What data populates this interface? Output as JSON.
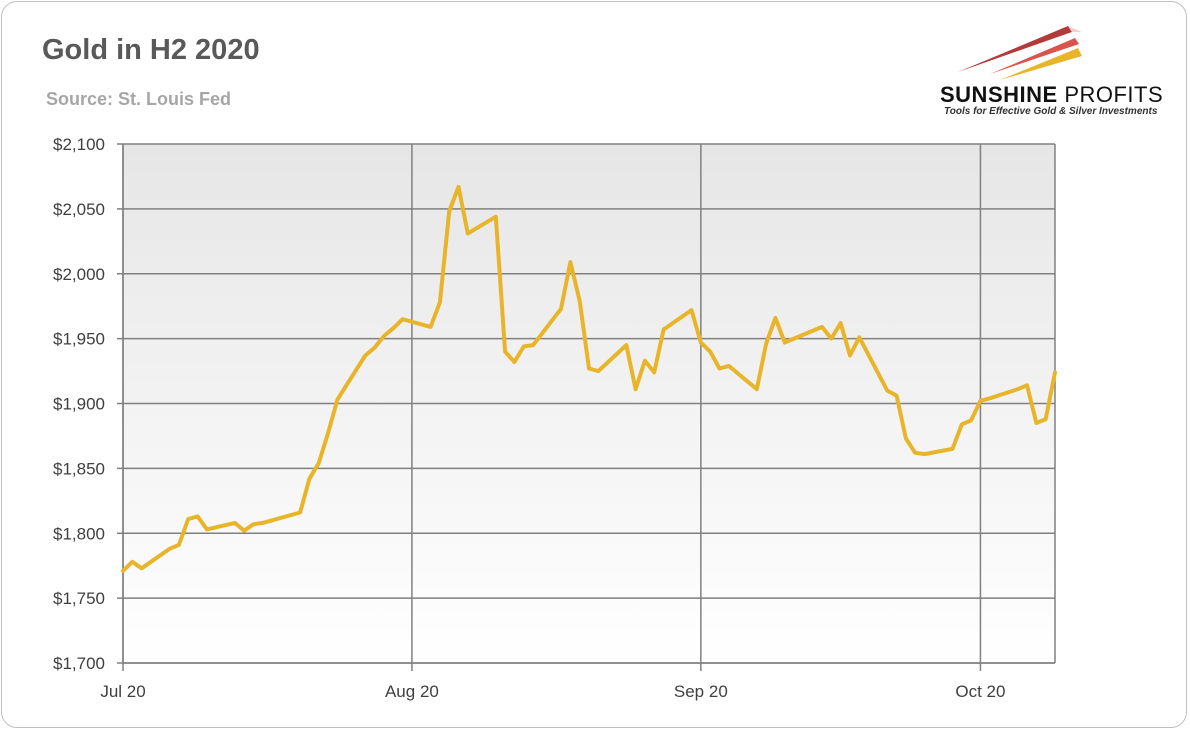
{
  "header": {
    "title": "Gold in H2 2020",
    "subtitle": "Source: St. Louis Fed"
  },
  "logo": {
    "name_bold": "SUNSHINE",
    "name_light": "PROFITS",
    "tagline": "Tools for Effective Gold & Silver Investments"
  },
  "colors": {
    "line": "#e8b52a",
    "grid": "#808080",
    "plot_top": "#e6e6e6",
    "plot_bottom": "#ffffff"
  },
  "chart_data": {
    "type": "line",
    "title": "Gold in H2 2020",
    "subtitle": "Source: St. Louis Fed",
    "xlabel": "",
    "ylabel": "",
    "ylim": [
      1700,
      2100
    ],
    "xlim": [
      "2020-07-01",
      "2020-10-09"
    ],
    "grid": true,
    "legend": "none",
    "y_ticks": [
      1700,
      1750,
      1800,
      1850,
      1900,
      1950,
      2000,
      2050,
      2100
    ],
    "y_tick_labels": [
      "$1,700",
      "$1,750",
      "$1,800",
      "$1,850",
      "$1,900",
      "$1,950",
      "$2,000",
      "$2,050",
      "$2,100"
    ],
    "x_ticks": [
      "2020-07-01",
      "2020-08-01",
      "2020-09-01",
      "2020-10-01"
    ],
    "x_tick_labels": [
      "Jul 20",
      "Aug 20",
      "Sep 20",
      "Oct 20"
    ],
    "series": [
      {
        "name": "",
        "x": [
          "2020-07-01",
          "2020-07-02",
          "2020-07-03",
          "2020-07-06",
          "2020-07-07",
          "2020-07-08",
          "2020-07-09",
          "2020-07-10",
          "2020-07-13",
          "2020-07-14",
          "2020-07-15",
          "2020-07-16",
          "2020-07-17",
          "2020-07-20",
          "2020-07-21",
          "2020-07-22",
          "2020-07-23",
          "2020-07-24",
          "2020-07-27",
          "2020-07-28",
          "2020-07-29",
          "2020-07-30",
          "2020-07-31",
          "2020-08-03",
          "2020-08-04",
          "2020-08-05",
          "2020-08-06",
          "2020-08-07",
          "2020-08-10",
          "2020-08-11",
          "2020-08-12",
          "2020-08-13",
          "2020-08-14",
          "2020-08-17",
          "2020-08-18",
          "2020-08-19",
          "2020-08-20",
          "2020-08-21",
          "2020-08-24",
          "2020-08-25",
          "2020-08-26",
          "2020-08-27",
          "2020-08-28",
          "2020-08-31",
          "2020-09-01",
          "2020-09-02",
          "2020-09-03",
          "2020-09-04",
          "2020-09-07",
          "2020-09-08",
          "2020-09-09",
          "2020-09-10",
          "2020-09-11",
          "2020-09-14",
          "2020-09-15",
          "2020-09-16",
          "2020-09-17",
          "2020-09-18",
          "2020-09-21",
          "2020-09-22",
          "2020-09-23",
          "2020-09-24",
          "2020-09-25",
          "2020-09-28",
          "2020-09-29",
          "2020-09-30",
          "2020-10-01",
          "2020-10-02",
          "2020-10-05",
          "2020-10-06",
          "2020-10-07",
          "2020-10-08",
          "2020-10-09"
        ],
        "values": [
          1771,
          1778,
          1773,
          1788,
          1791,
          1811,
          1813,
          1803,
          1808,
          1802,
          1807,
          1808,
          1810,
          1816,
          1842,
          1854,
          1877,
          1903,
          1937,
          1943,
          1952,
          1958,
          1965,
          1959,
          1978,
          2048,
          2067,
          2031,
          2044,
          1940,
          1932,
          1944,
          1945,
          1973,
          2009,
          1979,
          1927,
          1925,
          1945,
          1911,
          1933,
          1924,
          1957,
          1972,
          1947,
          1940,
          1927,
          1929,
          1911,
          1946,
          1966,
          1947,
          1950,
          1959,
          1950,
          1962,
          1937,
          1951,
          1910,
          1906,
          1873,
          1862,
          1861,
          1865,
          1884,
          1887,
          1902,
          1904,
          1911,
          1914,
          1885,
          1888,
          1924
        ]
      }
    ]
  }
}
